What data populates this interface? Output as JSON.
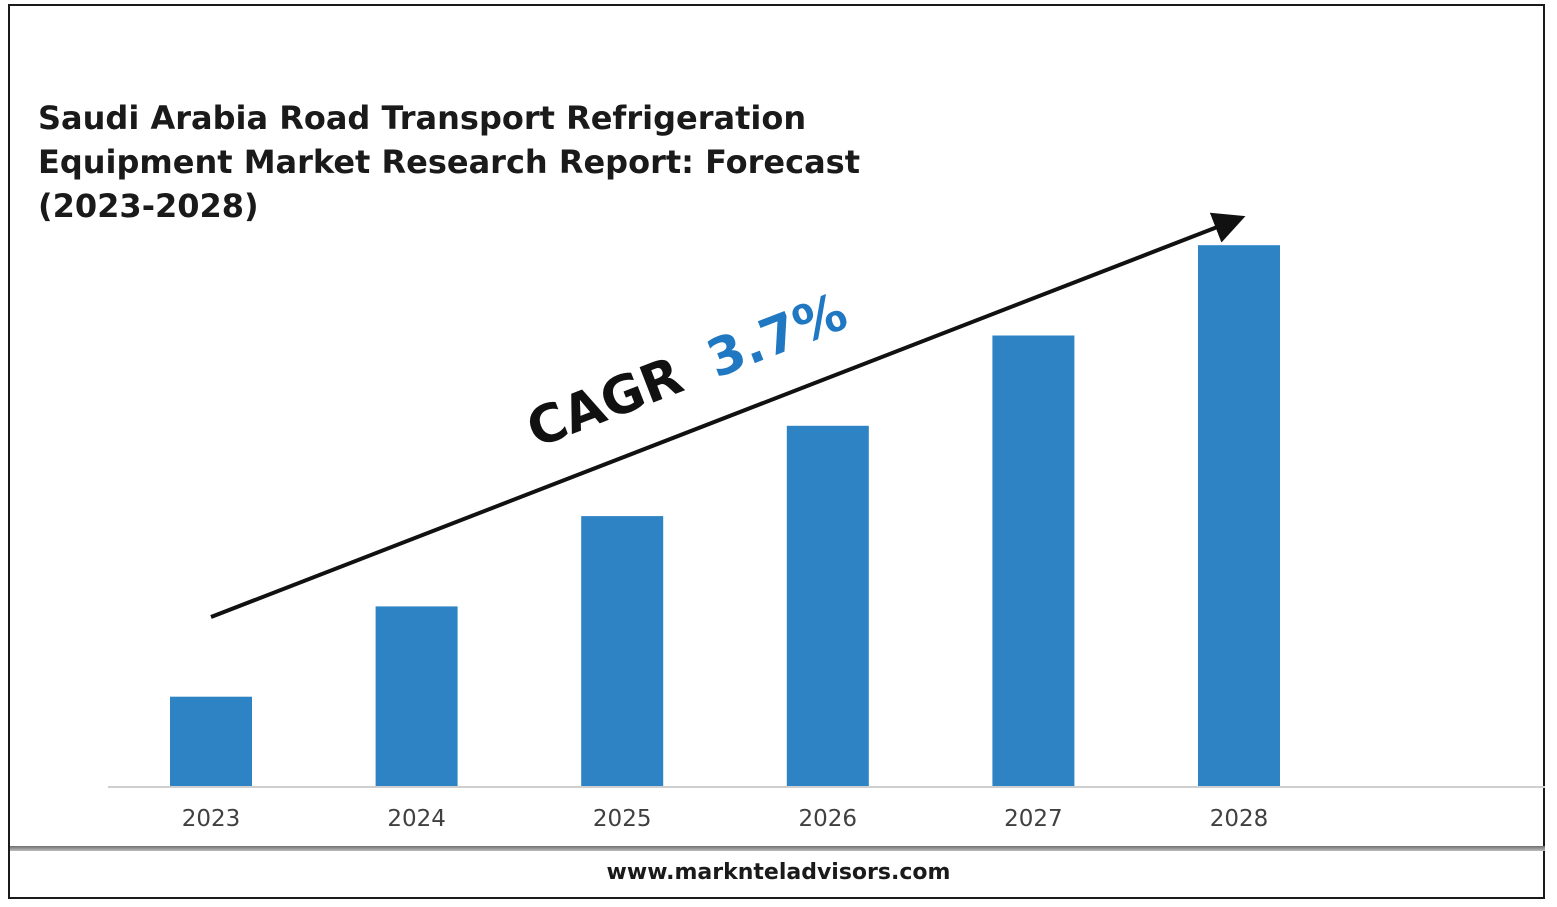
{
  "chart_data": {
    "type": "bar",
    "title": "Saudi Arabia Road Transport Refrigeration Equipment Market Research Report: Forecast (2023-2028)",
    "categories": [
      "2023",
      "2024",
      "2025",
      "2026",
      "2027",
      "2028"
    ],
    "values": [
      1,
      2,
      3,
      4,
      5,
      6
    ],
    "ylim": [
      0,
      6.5
    ],
    "bar_color": "#2e83c4",
    "grid": false,
    "annotation": {
      "prefix": "CAGR",
      "value": "3.7%",
      "value_color": "#1f78c1",
      "arrow": true
    }
  },
  "footer": {
    "url": "www.marknteladvisors.com"
  }
}
